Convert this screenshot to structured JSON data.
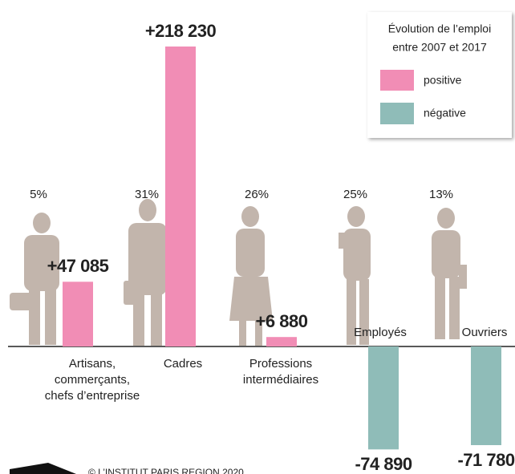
{
  "chart_data": {
    "type": "bar",
    "categories": [
      [
        "Artisans,",
        "commerçants,",
        "chefs d’entreprise"
      ],
      [
        "Cadres"
      ],
      [
        "Professions",
        "intermédiaires"
      ],
      [
        "Employés"
      ],
      [
        "Ouvriers"
      ]
    ],
    "values": [
      47085,
      218230,
      6880,
      -74890,
      -71780
    ],
    "value_labels": [
      "+47 085",
      "+218 230",
      "+6 880",
      "-74 890",
      "-71 780"
    ],
    "shares": [
      5,
      31,
      26,
      25,
      13
    ],
    "share_labels": [
      "5%",
      "31%",
      "26%",
      "25%",
      "13%"
    ],
    "legend_title": [
      "Évolution de l’emploi",
      "entre 2007 et 2017"
    ],
    "legend": [
      {
        "label": "positive",
        "color": "#f18db5"
      },
      {
        "label": "négative",
        "color": "#8fbcb8"
      }
    ],
    "source": "© L’INSTITUT PARIS REGION 2020"
  }
}
